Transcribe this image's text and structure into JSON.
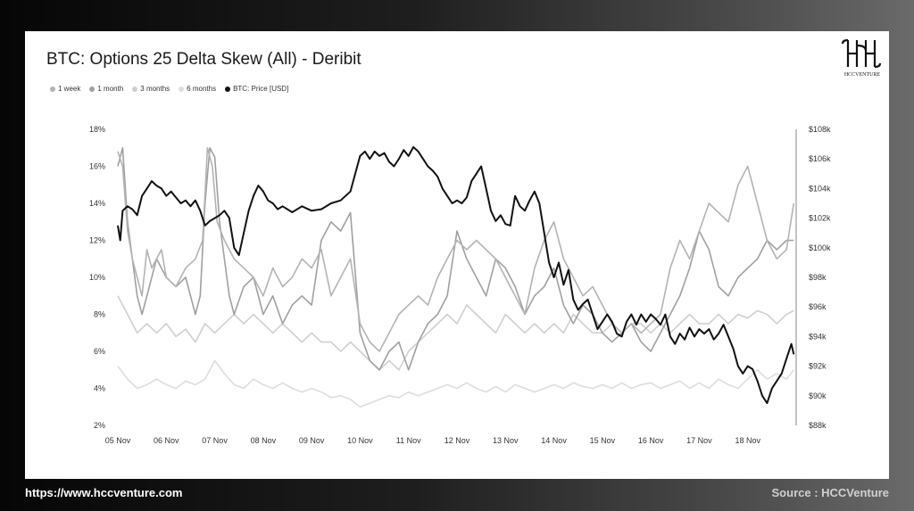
{
  "footer": {
    "url": "https://www.hccventure.com",
    "source": "Source : HCCVenture"
  },
  "logo": {
    "text": "HCCVENTURE"
  },
  "colors": {
    "btc": "#111111",
    "w1": "#b3b3b3",
    "m1": "#a0a0a0",
    "m3": "#cfcfcf",
    "m6": "#dddddd"
  },
  "chart_data": {
    "type": "line",
    "title": "BTC: Options 25 Delta Skew (All) - Deribit",
    "legend": [
      {
        "name": "1 week",
        "color": "#b3b3b3"
      },
      {
        "name": "1 month",
        "color": "#a0a0a0"
      },
      {
        "name": "3 months",
        "color": "#cfcfcf"
      },
      {
        "name": "6 months",
        "color": "#dddddd"
      },
      {
        "name": "BTC: Price [USD]",
        "color": "#111111"
      }
    ],
    "x_ticks": [
      "05 Nov",
      "06 Nov",
      "07 Nov",
      "08 Nov",
      "09 Nov",
      "10 Nov",
      "11 Nov",
      "12 Nov",
      "13 Nov",
      "14 Nov",
      "15 Nov",
      "16 Nov",
      "17 Nov",
      "18 Nov"
    ],
    "x_range": [
      0,
      14
    ],
    "y_left": {
      "ticks": [
        "2%",
        "4%",
        "6%",
        "8%",
        "10%",
        "12%",
        "14%",
        "16%",
        "18%"
      ],
      "range": [
        2,
        18
      ],
      "unit": "%"
    },
    "y_right": {
      "ticks": [
        "$88k",
        "$90k",
        "$92k",
        "$94k",
        "$96k",
        "$98k",
        "$100k",
        "$102k",
        "$104k",
        "$106k",
        "$108k"
      ],
      "range": [
        88,
        108
      ],
      "unit": "$k"
    },
    "series": [
      {
        "name": "1 week",
        "axis": "left",
        "color": "#b3b3b3",
        "x": [
          0,
          0.1,
          0.2,
          0.3,
          0.4,
          0.5,
          0.6,
          0.7,
          0.8,
          0.9,
          1.0,
          1.2,
          1.4,
          1.6,
          1.75,
          1.85,
          1.95,
          2.05,
          2.2,
          2.4,
          2.6,
          2.8,
          3.0,
          3.2,
          3.4,
          3.6,
          3.8,
          4.0,
          4.2,
          4.4,
          4.6,
          4.8,
          5.0,
          5.2,
          5.4,
          5.6,
          5.8,
          6.0,
          6.2,
          6.4,
          6.6,
          6.8,
          7.0,
          7.2,
          7.4,
          7.6,
          7.8,
          8.0,
          8.2,
          8.4,
          8.6,
          8.8,
          9.0,
          9.2,
          9.4,
          9.6,
          9.8,
          10.0,
          10.2,
          10.4,
          10.6,
          10.8,
          11.0,
          11.2,
          11.4,
          11.6,
          11.8,
          12.0,
          12.2,
          12.4,
          12.6,
          12.8,
          13.0,
          13.2,
          13.4,
          13.6,
          13.8,
          13.95
        ],
        "values": [
          16.8,
          16.0,
          12.5,
          11.0,
          10.0,
          9.0,
          11.5,
          10.5,
          11.0,
          11.5,
          10.0,
          9.5,
          10.5,
          11.0,
          12.0,
          17.0,
          16.0,
          13.0,
          12.0,
          11.0,
          10.5,
          10.0,
          9.0,
          10.5,
          9.5,
          10.0,
          11.0,
          10.5,
          11.5,
          9.0,
          10.0,
          11.0,
          7.5,
          6.5,
          6.0,
          7.0,
          8.0,
          8.5,
          9.0,
          8.5,
          10.0,
          11.0,
          12.0,
          11.5,
          12.0,
          11.5,
          11.0,
          10.0,
          9.0,
          8.0,
          10.5,
          12.0,
          13.0,
          11.0,
          10.0,
          9.0,
          9.5,
          8.5,
          7.5,
          7.0,
          7.5,
          7.0,
          7.5,
          8.0,
          10.5,
          12.0,
          11.0,
          12.5,
          14.0,
          13.5,
          13.0,
          15.0,
          16.0,
          14.0,
          12.0,
          11.0,
          11.5,
          14.0
        ]
      },
      {
        "name": "1 month",
        "axis": "left",
        "color": "#a0a0a0",
        "x": [
          0,
          0.1,
          0.2,
          0.3,
          0.4,
          0.5,
          0.6,
          0.8,
          1.0,
          1.2,
          1.4,
          1.6,
          1.7,
          1.8,
          1.9,
          2.0,
          2.1,
          2.2,
          2.3,
          2.4,
          2.6,
          2.8,
          3.0,
          3.2,
          3.4,
          3.6,
          3.8,
          4.0,
          4.2,
          4.4,
          4.6,
          4.8,
          5.0,
          5.2,
          5.4,
          5.6,
          5.8,
          6.0,
          6.2,
          6.4,
          6.6,
          6.8,
          7.0,
          7.2,
          7.4,
          7.6,
          7.8,
          8.0,
          8.2,
          8.4,
          8.6,
          8.8,
          9.0,
          9.2,
          9.4,
          9.6,
          9.8,
          10.0,
          10.2,
          10.4,
          10.6,
          10.8,
          11.0,
          11.2,
          11.4,
          11.6,
          11.8,
          12.0,
          12.2,
          12.4,
          12.6,
          12.8,
          13.0,
          13.2,
          13.4,
          13.6,
          13.8,
          13.95
        ],
        "values": [
          16.0,
          17.0,
          13.0,
          11.0,
          9.0,
          8.0,
          9.0,
          11.0,
          10.0,
          9.5,
          10.0,
          8.0,
          9.0,
          14.0,
          17.0,
          16.5,
          13.0,
          11.0,
          9.0,
          8.0,
          9.5,
          10.0,
          8.0,
          9.0,
          7.5,
          8.5,
          9.0,
          8.5,
          12.0,
          13.0,
          12.5,
          13.5,
          7.0,
          5.5,
          5.0,
          6.0,
          6.5,
          5.0,
          6.5,
          7.5,
          8.0,
          9.0,
          12.5,
          11.0,
          10.0,
          9.0,
          11.0,
          10.5,
          9.5,
          8.0,
          9.0,
          9.5,
          10.5,
          8.5,
          7.5,
          8.5,
          8.0,
          7.0,
          6.5,
          7.0,
          7.5,
          6.5,
          6.0,
          7.0,
          8.0,
          9.0,
          10.5,
          12.5,
          11.5,
          9.5,
          9.0,
          10.0,
          10.5,
          11.0,
          12.0,
          11.5,
          12.0,
          12.0
        ]
      },
      {
        "name": "3 months",
        "axis": "left",
        "color": "#cfcfcf",
        "x": [
          0,
          0.2,
          0.4,
          0.6,
          0.8,
          1.0,
          1.2,
          1.4,
          1.6,
          1.8,
          2.0,
          2.2,
          2.4,
          2.6,
          2.8,
          3.0,
          3.2,
          3.4,
          3.6,
          3.8,
          4.0,
          4.2,
          4.4,
          4.6,
          4.8,
          5.0,
          5.2,
          5.4,
          5.6,
          5.8,
          6.0,
          6.2,
          6.4,
          6.6,
          6.8,
          7.0,
          7.2,
          7.4,
          7.6,
          7.8,
          8.0,
          8.2,
          8.4,
          8.6,
          8.8,
          9.0,
          9.2,
          9.4,
          9.6,
          9.8,
          10.0,
          10.2,
          10.4,
          10.6,
          10.8,
          11.0,
          11.2,
          11.4,
          11.6,
          11.8,
          12.0,
          12.2,
          12.4,
          12.6,
          12.8,
          13.0,
          13.2,
          13.4,
          13.6,
          13.8,
          13.95
        ],
        "values": [
          9.0,
          8.0,
          7.0,
          7.5,
          7.0,
          7.5,
          6.8,
          7.2,
          6.5,
          7.5,
          7.0,
          7.5,
          8.0,
          7.5,
          8.0,
          7.5,
          7.0,
          7.5,
          7.0,
          6.5,
          7.0,
          6.5,
          6.5,
          6.0,
          6.5,
          6.0,
          5.5,
          5.0,
          5.5,
          5.0,
          6.0,
          6.5,
          7.0,
          7.5,
          8.0,
          7.5,
          8.5,
          8.0,
          7.5,
          7.0,
          8.0,
          7.5,
          7.0,
          7.5,
          7.0,
          7.5,
          7.0,
          8.0,
          7.5,
          7.0,
          7.0,
          7.5,
          7.0,
          7.5,
          7.5,
          7.0,
          7.5,
          7.0,
          7.5,
          8.0,
          7.5,
          7.5,
          8.0,
          7.5,
          8.0,
          7.8,
          8.2,
          8.0,
          7.5,
          8.0,
          8.2
        ]
      },
      {
        "name": "6 months",
        "axis": "left",
        "color": "#dddddd",
        "x": [
          0,
          0.2,
          0.4,
          0.6,
          0.8,
          1.0,
          1.2,
          1.4,
          1.6,
          1.8,
          2.0,
          2.2,
          2.4,
          2.6,
          2.8,
          3.0,
          3.2,
          3.4,
          3.6,
          3.8,
          4.0,
          4.2,
          4.4,
          4.6,
          4.8,
          5.0,
          5.2,
          5.4,
          5.6,
          5.8,
          6.0,
          6.2,
          6.4,
          6.6,
          6.8,
          7.0,
          7.2,
          7.4,
          7.6,
          7.8,
          8.0,
          8.2,
          8.4,
          8.6,
          8.8,
          9.0,
          9.2,
          9.4,
          9.6,
          9.8,
          10.0,
          10.2,
          10.4,
          10.6,
          10.8,
          11.0,
          11.2,
          11.4,
          11.6,
          11.8,
          12.0,
          12.2,
          12.4,
          12.6,
          12.8,
          13.0,
          13.2,
          13.4,
          13.6,
          13.8,
          13.95
        ],
        "values": [
          5.2,
          4.5,
          4.0,
          4.2,
          4.5,
          4.2,
          4.0,
          4.4,
          4.2,
          4.5,
          5.5,
          4.8,
          4.2,
          4.0,
          4.5,
          4.2,
          4.0,
          4.3,
          4.0,
          3.8,
          4.0,
          3.8,
          3.5,
          3.6,
          3.4,
          3.0,
          3.2,
          3.4,
          3.6,
          3.5,
          3.8,
          3.6,
          3.8,
          4.0,
          4.2,
          4.0,
          4.3,
          4.0,
          3.8,
          4.1,
          3.8,
          4.2,
          4.0,
          3.8,
          4.0,
          4.2,
          4.0,
          4.3,
          4.1,
          4.0,
          4.2,
          4.0,
          4.3,
          4.0,
          4.2,
          4.3,
          4.0,
          4.2,
          4.4,
          4.0,
          4.3,
          4.0,
          4.5,
          4.2,
          4.0,
          4.5,
          5.0,
          4.5,
          4.8,
          4.5,
          5.0
        ]
      },
      {
        "name": "BTC: Price [USD]",
        "axis": "right",
        "color": "#111111",
        "x": [
          0,
          0.05,
          0.1,
          0.2,
          0.3,
          0.4,
          0.5,
          0.6,
          0.7,
          0.8,
          0.9,
          1.0,
          1.1,
          1.2,
          1.3,
          1.4,
          1.5,
          1.6,
          1.7,
          1.8,
          1.9,
          2.0,
          2.1,
          2.2,
          2.3,
          2.4,
          2.5,
          2.6,
          2.7,
          2.8,
          2.9,
          3.0,
          3.1,
          3.2,
          3.3,
          3.4,
          3.6,
          3.8,
          4.0,
          4.2,
          4.4,
          4.6,
          4.8,
          4.9,
          5.0,
          5.1,
          5.2,
          5.3,
          5.4,
          5.5,
          5.6,
          5.7,
          5.8,
          5.9,
          6.0,
          6.1,
          6.2,
          6.3,
          6.4,
          6.5,
          6.6,
          6.7,
          6.8,
          6.9,
          7.0,
          7.1,
          7.2,
          7.3,
          7.4,
          7.5,
          7.6,
          7.7,
          7.8,
          7.9,
          8.0,
          8.1,
          8.2,
          8.3,
          8.4,
          8.5,
          8.6,
          8.7,
          8.8,
          8.9,
          9.0,
          9.1,
          9.2,
          9.3,
          9.4,
          9.5,
          9.6,
          9.7,
          9.8,
          9.9,
          10.0,
          10.1,
          10.2,
          10.3,
          10.4,
          10.5,
          10.6,
          10.7,
          10.8,
          10.9,
          11.0,
          11.1,
          11.2,
          11.3,
          11.4,
          11.5,
          11.6,
          11.7,
          11.8,
          11.9,
          12.0,
          12.1,
          12.2,
          12.3,
          12.4,
          12.5,
          12.6,
          12.7,
          12.8,
          12.9,
          13.0,
          13.1,
          13.2,
          13.3,
          13.4,
          13.5,
          13.6,
          13.7,
          13.8,
          13.9,
          13.95
        ],
        "values": [
          101.5,
          100.5,
          102.5,
          102.8,
          102.6,
          102.2,
          103.5,
          104.0,
          104.5,
          104.2,
          104.0,
          103.5,
          103.8,
          103.4,
          103.0,
          103.2,
          102.8,
          103.2,
          102.5,
          101.5,
          101.8,
          102.0,
          102.2,
          102.5,
          102.0,
          100.0,
          99.5,
          101.0,
          102.5,
          103.5,
          104.2,
          103.8,
          103.2,
          103.0,
          102.6,
          102.8,
          102.4,
          102.8,
          102.5,
          102.6,
          103.0,
          103.2,
          103.8,
          105.0,
          106.2,
          106.5,
          106.0,
          106.5,
          106.2,
          106.4,
          105.8,
          105.5,
          106.0,
          106.6,
          106.2,
          106.8,
          106.5,
          106.0,
          105.5,
          105.2,
          104.8,
          104.0,
          103.5,
          103.0,
          103.2,
          103.0,
          103.4,
          104.5,
          105.0,
          105.5,
          104.0,
          102.5,
          101.8,
          102.2,
          101.6,
          101.5,
          103.5,
          102.8,
          102.5,
          103.2,
          103.8,
          103.0,
          101.0,
          99.0,
          98.0,
          99.0,
          97.5,
          98.5,
          96.5,
          95.8,
          96.2,
          96.5,
          95.5,
          94.5,
          95.0,
          95.5,
          95.0,
          94.2,
          94.0,
          95.0,
          95.5,
          94.8,
          95.5,
          95.0,
          95.5,
          95.2,
          94.8,
          95.5,
          94.0,
          93.5,
          94.2,
          93.8,
          94.6,
          94.0,
          94.5,
          94.2,
          94.5,
          93.8,
          94.2,
          94.8,
          94.0,
          93.2,
          92.0,
          91.5,
          92.0,
          91.8,
          91.0,
          90.0,
          89.5,
          90.5,
          91.0,
          91.5,
          92.5,
          93.5,
          92.8
        ]
      }
    ]
  }
}
